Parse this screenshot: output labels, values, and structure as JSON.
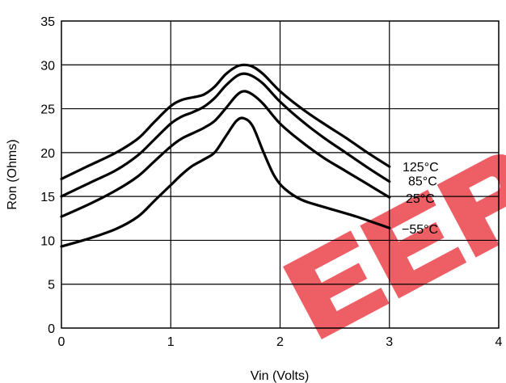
{
  "chart_data": {
    "type": "line",
    "xlabel": "Vin (Volts)",
    "ylabel": "Ron (Ohms)",
    "xlim": [
      0,
      4
    ],
    "ylim": [
      0,
      35
    ],
    "xticks": [
      0,
      1,
      2,
      3,
      4
    ],
    "yticks": [
      0,
      5,
      10,
      15,
      20,
      25,
      30,
      35
    ],
    "grid": true,
    "series": [
      {
        "name": "125°C",
        "x": [
          0,
          0.25,
          0.5,
          0.7,
          0.85,
          1.0,
          1.1,
          1.2,
          1.3,
          1.4,
          1.5,
          1.6,
          1.67,
          1.75,
          1.85,
          2.0,
          2.2,
          2.4,
          2.6,
          2.8,
          3.0
        ],
        "y": [
          17.0,
          18.5,
          20.0,
          21.6,
          23.5,
          25.3,
          26.0,
          26.3,
          26.6,
          27.5,
          28.9,
          29.8,
          30.0,
          29.8,
          28.9,
          27.0,
          25.0,
          23.3,
          21.7,
          20.0,
          18.4
        ]
      },
      {
        "name": "85°C",
        "x": [
          0,
          0.25,
          0.5,
          0.7,
          0.85,
          1.0,
          1.1,
          1.2,
          1.3,
          1.4,
          1.5,
          1.6,
          1.67,
          1.75,
          1.85,
          2.0,
          2.2,
          2.4,
          2.6,
          2.8,
          3.0
        ],
        "y": [
          15.0,
          16.5,
          18.0,
          19.7,
          21.5,
          23.3,
          24.1,
          24.6,
          25.2,
          26.2,
          27.6,
          28.7,
          29.0,
          28.7,
          27.8,
          25.8,
          23.6,
          21.7,
          20.0,
          18.3,
          16.7
        ]
      },
      {
        "name": "25°C",
        "x": [
          0,
          0.25,
          0.5,
          0.7,
          0.85,
          1.0,
          1.1,
          1.2,
          1.3,
          1.4,
          1.5,
          1.6,
          1.67,
          1.75,
          1.85,
          2.0,
          2.2,
          2.4,
          2.6,
          2.8,
          3.0
        ],
        "y": [
          12.7,
          14.1,
          15.7,
          17.3,
          19.0,
          20.7,
          21.6,
          22.2,
          22.8,
          23.6,
          25.0,
          26.5,
          27.0,
          26.6,
          25.5,
          23.3,
          21.2,
          19.4,
          17.9,
          16.4,
          14.9
        ]
      },
      {
        "name": "−55°C",
        "x": [
          0,
          0.25,
          0.5,
          0.7,
          0.85,
          1.0,
          1.1,
          1.2,
          1.3,
          1.4,
          1.5,
          1.6,
          1.67,
          1.75,
          1.85,
          1.95,
          2.05,
          2.2,
          2.4,
          2.7,
          3.0
        ],
        "y": [
          9.3,
          10.2,
          11.3,
          12.7,
          14.5,
          16.3,
          17.5,
          18.5,
          19.2,
          20.0,
          21.8,
          23.6,
          23.9,
          23.0,
          20.0,
          17.3,
          15.8,
          14.6,
          13.8,
          12.7,
          11.4
        ]
      }
    ]
  },
  "watermark": {
    "text": "EEPW",
    "color": "#e8202a"
  }
}
